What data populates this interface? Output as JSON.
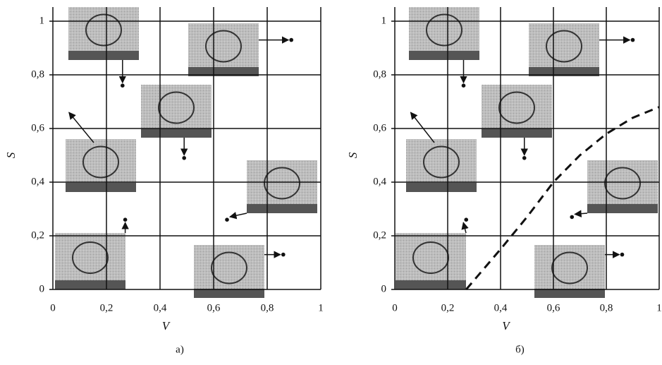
{
  "chart_data": [
    {
      "type": "scatter",
      "caption": "а)",
      "xlabel": "V",
      "ylabel": "S",
      "color": "#111111",
      "grid": true,
      "x": [
        0.26,
        0.89,
        0.49,
        0.65,
        0.27,
        0.86
      ],
      "y": [
        0.76,
        0.93,
        0.49,
        0.26,
        0.26,
        0.13
      ],
      "xlim": [
        0,
        1
      ],
      "ylim": [
        0,
        1
      ],
      "xticks": [
        0,
        {
          "value": 0.2,
          "label": "0,2"
        },
        {
          "value": 0.4,
          "label": "0,4"
        },
        {
          "value": 0.6,
          "label": "0,6"
        },
        {
          "value": 0.8,
          "label": "0,8"
        },
        1
      ],
      "yticks": [
        0,
        {
          "value": 0.2,
          "label": "0,2"
        },
        {
          "value": 0.4,
          "label": "0,4"
        },
        {
          "value": 0.6,
          "label": "0,6"
        },
        {
          "value": 0.8,
          "label": "0,8"
        },
        1
      ]
    },
    {
      "type": "scatter",
      "caption": "б)",
      "xlabel": "V",
      "ylabel": "S",
      "color": "#111111",
      "grid": true,
      "x": [
        0.26,
        0.9,
        0.49,
        0.67,
        0.27,
        0.86
      ],
      "y": [
        0.76,
        0.93,
        0.49,
        0.27,
        0.26,
        0.13
      ],
      "xlim": [
        0,
        1
      ],
      "ylim": [
        0,
        1
      ],
      "xticks": [
        0,
        {
          "value": 0.2,
          "label": "0,2"
        },
        {
          "value": 0.4,
          "label": "0,4"
        },
        {
          "value": 0.6,
          "label": "0,6"
        },
        {
          "value": 0.8,
          "label": "0,8"
        },
        1
      ],
      "yticks": [
        0,
        {
          "value": 0.2,
          "label": "0,2"
        },
        {
          "value": 0.4,
          "label": "0,4"
        },
        {
          "value": 0.6,
          "label": "0,6"
        },
        {
          "value": 0.8,
          "label": "0,8"
        },
        1
      ],
      "curve": {
        "x": [
          0.27,
          0.4,
          0.5,
          0.6,
          0.7,
          0.8,
          0.9,
          1
        ],
        "y": [
          0,
          0.15,
          0.27,
          0.4,
          0.5,
          0.58,
          0.64,
          0.68
        ],
        "dashed": true
      }
    }
  ]
}
